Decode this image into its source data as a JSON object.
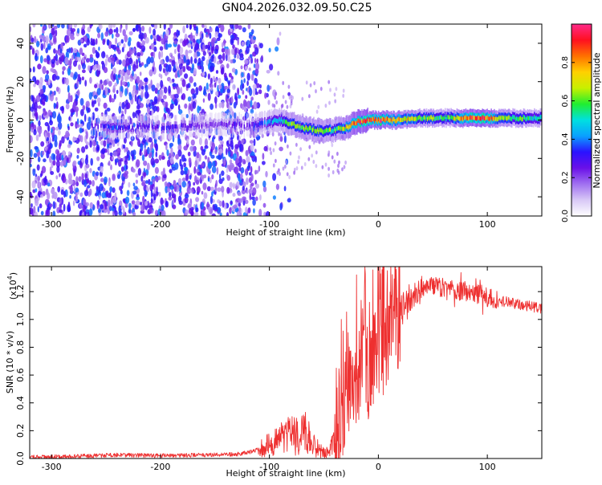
{
  "title": "GN04.2026.032.09.50.C25",
  "chart_data": [
    {
      "type": "heatmap",
      "title": "GN04.2026.032.09.50.C25",
      "xlabel": "Height of straight line (km)",
      "ylabel": "Frequency (Hz)",
      "xlim": [
        -320,
        150
      ],
      "ylim": [
        -50,
        50
      ],
      "xticks": [
        -300,
        -200,
        -100,
        0,
        100
      ],
      "xtick_labels": [
        "-300",
        "-200",
        "-100",
        "0",
        "100"
      ],
      "yticks": [
        -40,
        -20,
        0,
        20,
        40
      ],
      "ytick_labels": [
        "-40",
        "-20",
        "0",
        "20",
        "40"
      ],
      "colorbar": {
        "label": "Normalized spectral amplitude",
        "range": [
          0,
          1
        ],
        "ticks": [
          0.0,
          0.2,
          0.4,
          0.6,
          0.8
        ],
        "tick_labels": [
          "0.0",
          "0.2",
          "0.4",
          "0.6",
          "0.8"
        ],
        "colors": [
          "#ffffff",
          "#d8c8f6",
          "#a070f0",
          "#6a10e8",
          "#2a12ff",
          "#0aa0ff",
          "#00e0e0",
          "#20ee30",
          "#c8f000",
          "#ffd000",
          "#ff7000",
          "#ff1020",
          "#ff2a8a"
        ]
      },
      "ridge": {
        "x": [
          -260,
          -240,
          -220,
          -200,
          -180,
          -160,
          -140,
          -120,
          -100,
          -90,
          -80,
          -70,
          -60,
          -50,
          -40,
          -30,
          -20,
          -10,
          0,
          20,
          40,
          60,
          80,
          100,
          120,
          150
        ],
        "y": [
          -3,
          -4,
          -3,
          -4,
          -3,
          -3,
          -2,
          -3,
          -1,
          0,
          -2,
          -4,
          -5,
          -6,
          -5,
          -4,
          -1,
          0,
          0,
          0,
          1,
          1,
          1,
          1,
          1,
          1
        ],
        "amp": [
          0.28,
          0.35,
          0.25,
          0.3,
          0.28,
          0.22,
          0.22,
          0.28,
          0.42,
          0.48,
          0.6,
          0.62,
          0.66,
          0.62,
          0.62,
          0.72,
          0.84,
          0.9,
          0.9,
          0.78,
          0.62,
          0.56,
          0.9,
          0.88,
          0.62,
          0.52
        ]
      }
    },
    {
      "type": "line",
      "xlabel": "Height of straight line (km)",
      "ylabel": "SNR (10 * v/v)",
      "scale_label": "(x10",
      "scale_exponent": "4",
      "scale_close": ")",
      "xlim": [
        -320,
        150
      ],
      "ylim": [
        0,
        1.38
      ],
      "xticks": [
        -300,
        -200,
        -100,
        0,
        100
      ],
      "xtick_labels": [
        "-300",
        "-200",
        "-100",
        "0",
        "100"
      ],
      "yticks": [
        0.0,
        0.2,
        0.4,
        0.6,
        0.8,
        1.0,
        1.2
      ],
      "ytick_labels": [
        "0.0",
        "0.2",
        "0.4",
        "0.6",
        "0.8",
        "1.0",
        "1.2"
      ],
      "color": "#ee3030",
      "series": [
        {
          "name": "SNR",
          "x": [
            -320,
            -280,
            -240,
            -200,
            -160,
            -130,
            -115,
            -105,
            -95,
            -85,
            -75,
            -68,
            -60,
            -52,
            -45,
            -40,
            -35,
            -30,
            -25,
            -20,
            -15,
            -10,
            -5,
            0,
            5,
            10,
            15,
            20,
            30,
            40,
            50,
            60,
            70,
            80,
            90,
            100,
            110,
            120,
            130,
            150
          ],
          "y": [
            0.01,
            0.015,
            0.025,
            0.02,
            0.025,
            0.03,
            0.05,
            0.08,
            0.12,
            0.15,
            0.18,
            0.2,
            0.12,
            0.05,
            0.04,
            0.15,
            0.3,
            0.5,
            0.6,
            0.62,
            0.62,
            0.65,
            0.7,
            0.75,
            0.82,
            0.9,
            0.98,
            1.05,
            1.15,
            1.22,
            1.24,
            1.23,
            1.21,
            1.2,
            1.18,
            1.16,
            1.14,
            1.12,
            1.11,
            1.08
          ]
        }
      ]
    }
  ]
}
